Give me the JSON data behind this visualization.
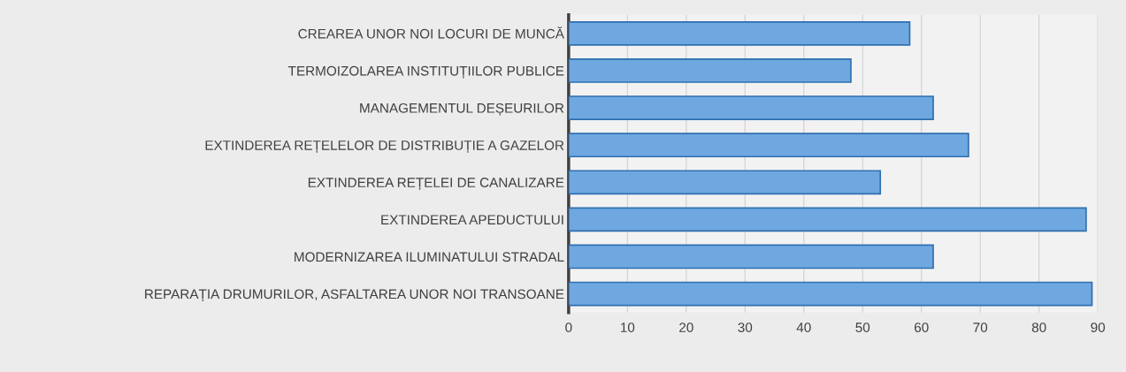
{
  "chart_data": {
    "type": "bar",
    "orientation": "horizontal",
    "categories": [
      "CREAREA UNOR NOI LOCURI DE MUNCĂ",
      "TERMOIZOLAREA INSTITUȚIILOR PUBLICE",
      "MANAGEMENTUL DEȘEURILOR",
      "EXTINDEREA REȚELELOR DE DISTRIBUȚIE A GAZELOR",
      "EXTINDEREA REȚELEI DE CANALIZARE",
      "EXTINDEREA APEDUCTULUI",
      "MODERNIZAREA ILUMINATULUI STRADAL",
      "REPARAȚIA DRUMURILOR, ASFALTAREA UNOR NOI TRANSOANE"
    ],
    "values": [
      58,
      48,
      62,
      68,
      53,
      88,
      62,
      89
    ],
    "color": "#6fa8e0",
    "xlim": [
      0,
      90
    ],
    "xticks": [
      0,
      10,
      20,
      30,
      40,
      50,
      60,
      70,
      80,
      90
    ],
    "grid": "x"
  }
}
